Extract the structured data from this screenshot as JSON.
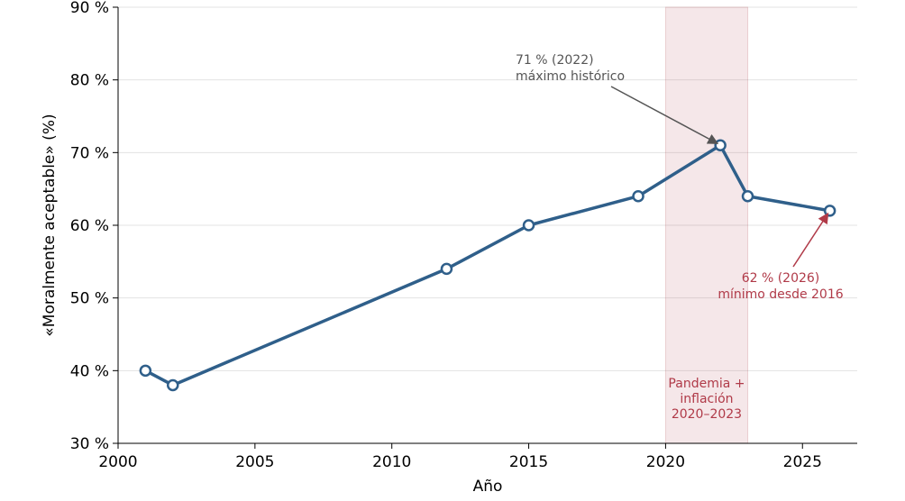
{
  "chart_data": {
    "type": "line",
    "title": "",
    "xlabel": "Año",
    "ylabel": "«Moralmente aceptable» (%)",
    "xlim": [
      2000,
      2027
    ],
    "ylim": [
      30,
      90
    ],
    "x_ticks": [
      2000,
      2005,
      2010,
      2015,
      2020,
      2025
    ],
    "y_ticks": [
      30,
      40,
      50,
      60,
      70,
      80,
      90
    ],
    "y_tick_suffix": " %",
    "grid": "horizontal",
    "series": [
      {
        "x": [
          2001,
          2002,
          2012,
          2015,
          2019,
          2022,
          2023,
          2026
        ],
        "values": [
          40,
          38,
          54,
          60,
          64,
          71,
          64,
          62
        ],
        "color": "#2f5f8a"
      }
    ],
    "shaded_region": {
      "x_start": 2020,
      "x_end": 2023,
      "label_lines": [
        "Pandemia +",
        "inflación",
        "2020–2023"
      ],
      "color": "#b03a48"
    },
    "annotations": [
      {
        "lines": [
          "71 % (2022)",
          "máximo histórico"
        ],
        "point_x": 2022,
        "point_y": 71,
        "color": "#555555"
      },
      {
        "lines": [
          "62 % (2026)",
          "mínimo desde 2016"
        ],
        "point_x": 2026,
        "point_y": 62,
        "color": "#b03a48"
      }
    ]
  }
}
